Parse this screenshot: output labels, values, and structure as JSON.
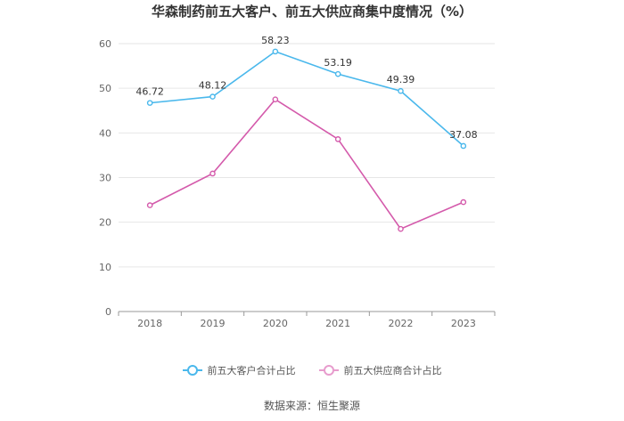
{
  "title": "华森制药前五大客户、前五大供应商集中度情况（%）",
  "source": "数据来源：恒生聚源",
  "chart_data": {
    "type": "line",
    "categories": [
      "2018",
      "2019",
      "2020",
      "2021",
      "2022",
      "2023"
    ],
    "ylim": [
      0,
      60
    ],
    "yticks": [
      0,
      10,
      20,
      30,
      40,
      50,
      60
    ],
    "grid": true,
    "legend_position": "bottom",
    "series": [
      {
        "name": "前五大客户合计占比",
        "color": "#4ab8ec",
        "values": [
          46.72,
          48.12,
          58.23,
          53.19,
          49.39,
          37.08
        ],
        "labels": [
          "46.72",
          "48.12",
          "58.23",
          "53.19",
          "49.39",
          "37.08"
        ]
      },
      {
        "name": "前五大供应商合计占比",
        "color": "#d45aab",
        "values": [
          23.8,
          30.9,
          47.5,
          38.6,
          18.5,
          24.5
        ],
        "labels": []
      }
    ]
  }
}
